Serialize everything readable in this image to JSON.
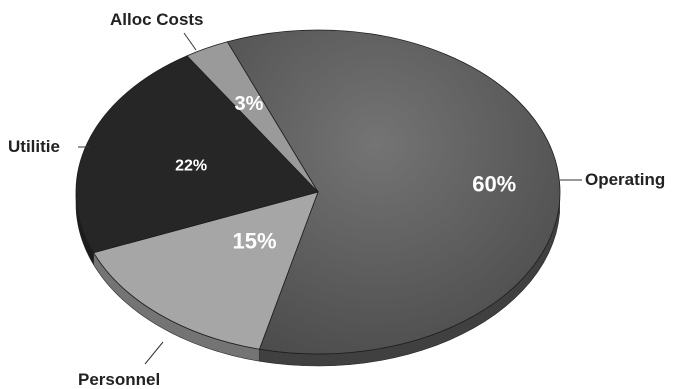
{
  "chart_data": {
    "type": "pie",
    "style": "3d",
    "title": "",
    "slices": [
      {
        "label": "Operating",
        "value": 60,
        "display": "60%",
        "color": "#5c5c5c"
      },
      {
        "label": "Personnel",
        "value": 15,
        "display": "15%",
        "color": "#a6a6a6"
      },
      {
        "label": "Utilitie",
        "value": 22,
        "display": "22%",
        "color": "#262626"
      },
      {
        "label": "Alloc Costs",
        "value": 3,
        "display": "3%",
        "color": "#9a9a9a"
      }
    ]
  }
}
